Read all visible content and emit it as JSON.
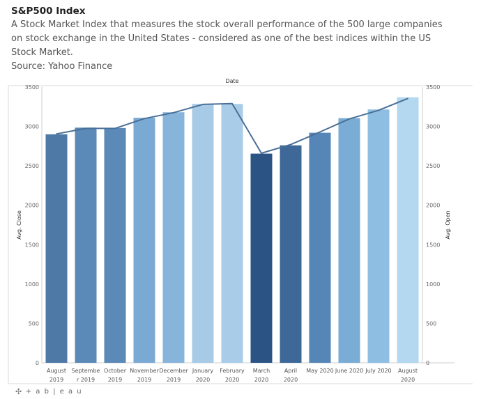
{
  "header": {
    "title": "S&P500 Index",
    "description": "A Stock Market Index that measures the stock overall performance of the 500 large companies\non stock exchange in the United States - considered as one of the best indices within the US\nStock Market.",
    "source": "Source: Yahoo Finance"
  },
  "footer": {
    "brand": "+ a b | e a u",
    "icon": "tableau-logo-icon"
  },
  "chart_data": {
    "type": "bar",
    "title": "Date",
    "categories": [
      [
        "August",
        "2019"
      ],
      [
        "Septembe",
        "r 2019"
      ],
      [
        "October",
        "2019"
      ],
      [
        "November",
        "2019"
      ],
      [
        "December",
        "2019"
      ],
      [
        "January",
        "2020"
      ],
      [
        "February",
        "2020"
      ],
      [
        "March",
        "2020"
      ],
      [
        "April",
        "2020"
      ],
      [
        "May 2020",
        ""
      ],
      [
        "June 2020",
        ""
      ],
      [
        "July 2020",
        ""
      ],
      [
        "August",
        "2020"
      ]
    ],
    "series": [
      {
        "name": "Avg. Close",
        "type": "bar",
        "axis": "left",
        "values": [
          2900,
          2985,
          2980,
          3110,
          3180,
          3285,
          3285,
          2655,
          2760,
          2920,
          3105,
          3215,
          3370
        ],
        "colors": [
          "#4e79a7",
          "#5b89b8",
          "#5b89b8",
          "#7aaad4",
          "#86b4da",
          "#a7cbe7",
          "#a9cde8",
          "#2b5485",
          "#3d6898",
          "#5586b7",
          "#7bacd6",
          "#8ebfe2",
          "#b3d8ef"
        ]
      },
      {
        "name": "Avg. Open",
        "type": "line",
        "axis": "right",
        "color": "#4a6f96",
        "values": [
          2905,
          2975,
          2975,
          3100,
          3175,
          3280,
          3290,
          2660,
          2770,
          2930,
          3095,
          3205,
          3355
        ]
      }
    ],
    "ylabel": "Avg. Close",
    "y2label": "Avg. Open",
    "ylim": [
      0,
      3500
    ],
    "y2lim": [
      0,
      3500
    ],
    "yticks": [
      "0",
      "500",
      "1000",
      "1500",
      "2000",
      "2500",
      "3000",
      "3500"
    ],
    "ytick_values": [
      0,
      500,
      1000,
      1500,
      2000,
      2500,
      3000,
      3500
    ],
    "grid": false
  }
}
